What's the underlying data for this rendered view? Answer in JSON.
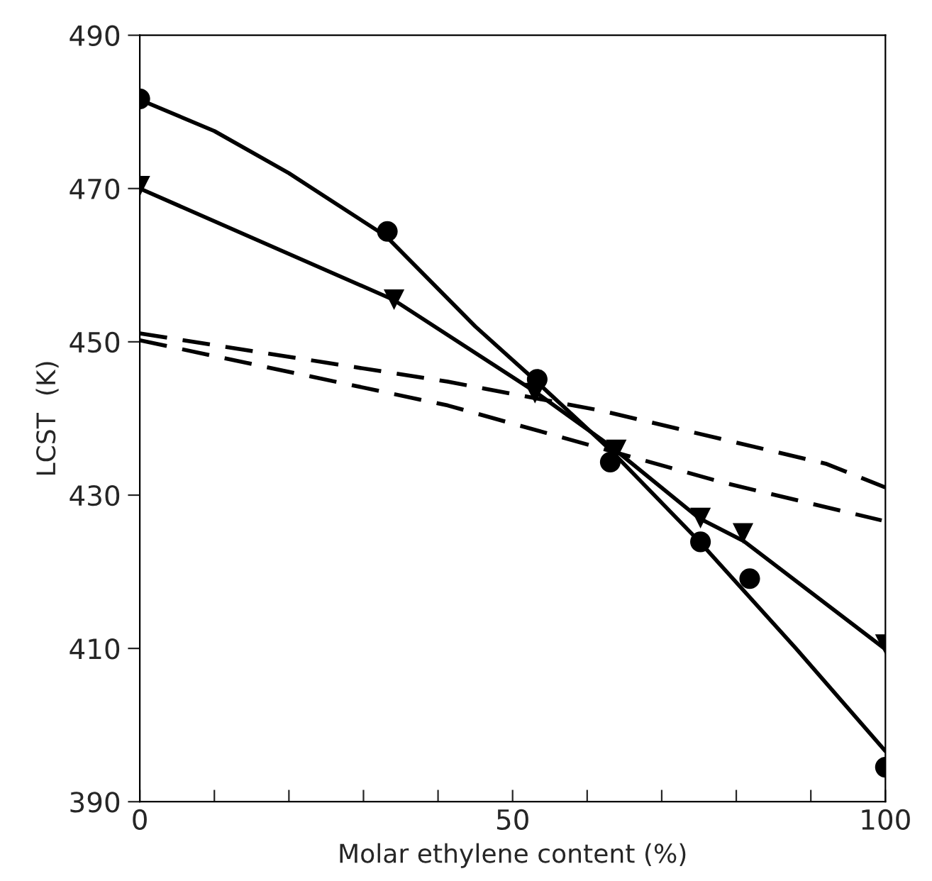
{
  "chart_data": {
    "type": "scatter",
    "xlabel": "Molar ethylene content (%)",
    "ylabel": "LCST  (K)",
    "xlim": [
      0,
      100
    ],
    "xticks": [
      0,
      {
        "value": 10,
        "label": null
      },
      {
        "value": 20,
        "label": null
      },
      {
        "value": 30,
        "label": null
      },
      {
        "value": 40,
        "label": null
      },
      50,
      {
        "value": 60,
        "label": null
      },
      {
        "value": 70,
        "label": null
      },
      {
        "value": 80,
        "label": null
      },
      {
        "value": 90,
        "label": null
      },
      100
    ],
    "ylim": [
      390,
      490
    ],
    "yticks": [
      390,
      410,
      430,
      450,
      470,
      490
    ],
    "grid": false,
    "legend": false,
    "series": [
      {
        "marker": "circle",
        "color": "#000000",
        "x": [
          0,
          33.2,
          53.3,
          63.1,
          75.2,
          81.8,
          100
        ],
        "values": [
          481.7,
          464.4,
          445.1,
          434.3,
          423.9,
          419.1,
          394.5
        ]
      },
      {
        "marker": "triangle",
        "color": "#000000",
        "x": [
          0,
          34.1,
          53.0,
          63.9,
          75.2,
          80.9,
          100
        ],
        "values": [
          470.3,
          455.5,
          443.3,
          435.9,
          427.0,
          425.0,
          410.5
        ]
      },
      {
        "type": "line",
        "marker": "none",
        "line_style": "solid",
        "color": "#000000",
        "x": [
          0,
          10,
          20,
          33,
          45,
          53,
          63,
          75,
          88,
          100
        ],
        "values": [
          481.6,
          477.5,
          472,
          463.8,
          452,
          445,
          436,
          424,
          410,
          396.6
        ]
      },
      {
        "type": "line",
        "marker": "none",
        "line_style": "solid",
        "color": "#000000",
        "x": [
          0,
          34,
          53,
          63,
          75,
          81,
          100
        ],
        "values": [
          470,
          455.5,
          443.5,
          436.5,
          427,
          424,
          409.9
        ]
      },
      {
        "type": "line",
        "marker": "none",
        "line_style": "dashed",
        "color": "#000000",
        "x": [
          0,
          41.3,
          62,
          92,
          100
        ],
        "values": [
          451.1,
          444.8,
          441,
          434.1,
          431.0
        ]
      },
      {
        "type": "line",
        "marker": "none",
        "line_style": "dashed",
        "color": "#000000",
        "x": [
          0,
          41.3,
          78.4,
          99.5
        ],
        "values": [
          450.2,
          441.7,
          431.6,
          426.7
        ]
      }
    ]
  }
}
